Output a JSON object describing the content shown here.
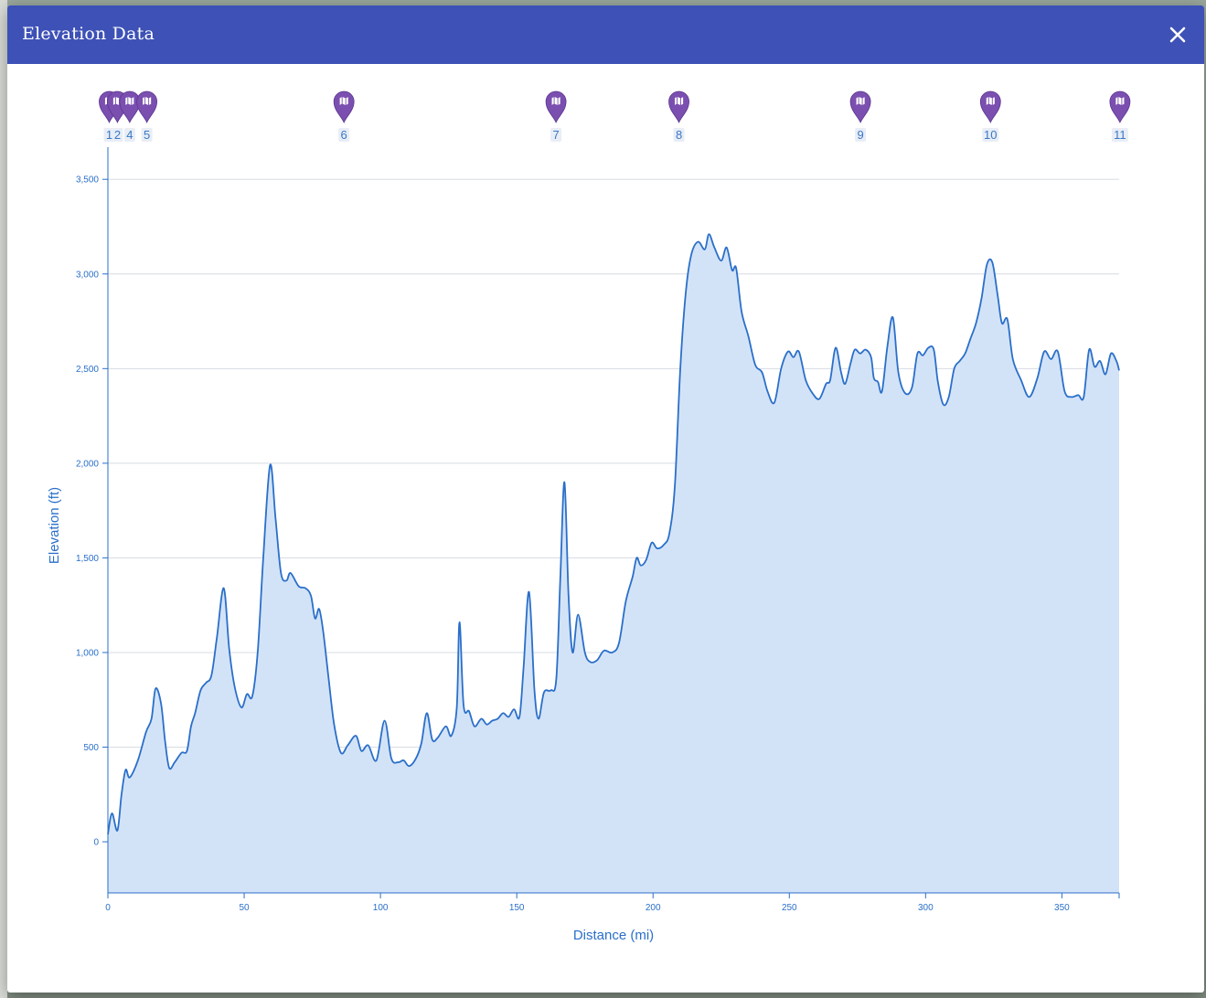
{
  "dialog": {
    "title": "Elevation Data",
    "close_icon": "close-icon"
  },
  "colors": {
    "header": "#3d51b6",
    "line": "#2a6fc9",
    "fill": "#d3e3f7",
    "axis": "#2a6fc9",
    "marker": "#7b4fb0",
    "marker_label_bg": "#e8edf6"
  },
  "markers": [
    {
      "label": "1",
      "x": 0.5,
      "icon": "map-marker-icon"
    },
    {
      "label": "2",
      "x": 3.5,
      "icon": "map-marker-icon"
    },
    {
      "label": "4",
      "x": 8,
      "icon": "map-marker-icon"
    },
    {
      "label": "5",
      "x": 14.3,
      "icon": "map-marker-icon"
    },
    {
      "label": "6",
      "x": 86.6,
      "icon": "map-marker-icon"
    },
    {
      "label": "7",
      "x": 164.4,
      "icon": "map-marker-icon"
    },
    {
      "label": "8",
      "x": 209.5,
      "icon": "map-marker-icon"
    },
    {
      "label": "9",
      "x": 276.1,
      "icon": "map-marker-icon"
    },
    {
      "label": "10",
      "x": 323.8,
      "icon": "map-marker-icon"
    },
    {
      "label": "11",
      "x": 371.3,
      "icon": "map-marker-icon"
    }
  ],
  "chart_data": {
    "type": "area",
    "xlabel": "Distance (mi)",
    "ylabel": "Elevation (ft)",
    "xlim": [
      0,
      371
    ],
    "ylim": [
      -270,
      3670
    ],
    "grid": true,
    "x_ticks": [
      0,
      50,
      100,
      150,
      200,
      250,
      300,
      350
    ],
    "x_tick_labels": [
      "0",
      "50",
      "100",
      "150",
      "200",
      "250",
      "300",
      "350"
    ],
    "y_ticks": [
      0,
      500,
      1000,
      1500,
      2000,
      2500,
      3000,
      3500
    ],
    "y_tick_labels": [
      "0",
      "500",
      "1,000",
      "1,500",
      "2,000",
      "2,500",
      "3,000",
      "3,500"
    ],
    "series": [
      {
        "values": [
          [
            0,
            40
          ],
          [
            1.5,
            150
          ],
          [
            3.5,
            60
          ],
          [
            5,
            250
          ],
          [
            6.5,
            380
          ],
          [
            8,
            340
          ],
          [
            11,
            430
          ],
          [
            14,
            580
          ],
          [
            16,
            650
          ],
          [
            17.5,
            810
          ],
          [
            19.5,
            730
          ],
          [
            21,
            530
          ],
          [
            22.5,
            390
          ],
          [
            24.5,
            420
          ],
          [
            27,
            470
          ],
          [
            29,
            480
          ],
          [
            30.5,
            610
          ],
          [
            32,
            680
          ],
          [
            34,
            800
          ],
          [
            36,
            840
          ],
          [
            38,
            880
          ],
          [
            40,
            1080
          ],
          [
            42.5,
            1340
          ],
          [
            44.5,
            1020
          ],
          [
            46.5,
            820
          ],
          [
            49,
            710
          ],
          [
            51,
            780
          ],
          [
            53,
            770
          ],
          [
            55,
            1010
          ],
          [
            57,
            1500
          ],
          [
            59.5,
            1990
          ],
          [
            61.5,
            1710
          ],
          [
            63.5,
            1420
          ],
          [
            65.5,
            1380
          ],
          [
            67,
            1420
          ],
          [
            70,
            1350
          ],
          [
            72.5,
            1340
          ],
          [
            74.5,
            1300
          ],
          [
            76,
            1180
          ],
          [
            77.5,
            1230
          ],
          [
            79,
            1110
          ],
          [
            81,
            860
          ],
          [
            83,
            620
          ],
          [
            85.5,
            470
          ],
          [
            88,
            510
          ],
          [
            91,
            560
          ],
          [
            93,
            480
          ],
          [
            95.5,
            510
          ],
          [
            98.5,
            430
          ],
          [
            101.5,
            640
          ],
          [
            104,
            440
          ],
          [
            106.5,
            420
          ],
          [
            108.5,
            430
          ],
          [
            110.5,
            400
          ],
          [
            113,
            440
          ],
          [
            115,
            520
          ],
          [
            117,
            680
          ],
          [
            119,
            540
          ],
          [
            121,
            550
          ],
          [
            124,
            610
          ],
          [
            126,
            560
          ],
          [
            128,
            710
          ],
          [
            129,
            1160
          ],
          [
            130.5,
            720
          ],
          [
            132.5,
            690
          ],
          [
            134.5,
            610
          ],
          [
            137,
            650
          ],
          [
            139,
            620
          ],
          [
            141,
            640
          ],
          [
            143,
            650
          ],
          [
            145,
            680
          ],
          [
            147,
            660
          ],
          [
            149,
            700
          ],
          [
            151,
            660
          ],
          [
            152.5,
            920
          ],
          [
            154.5,
            1320
          ],
          [
            156.5,
            800
          ],
          [
            158,
            650
          ],
          [
            160,
            790
          ],
          [
            162.5,
            800
          ],
          [
            164.5,
            860
          ],
          [
            166,
            1400
          ],
          [
            167.5,
            1900
          ],
          [
            169,
            1300
          ],
          [
            170.5,
            1000
          ],
          [
            172.5,
            1200
          ],
          [
            175,
            1000
          ],
          [
            177,
            950
          ],
          [
            179.5,
            960
          ],
          [
            182,
            1010
          ],
          [
            185,
            1000
          ],
          [
            187.5,
            1050
          ],
          [
            190,
            1270
          ],
          [
            192.5,
            1400
          ],
          [
            194,
            1500
          ],
          [
            195.5,
            1460
          ],
          [
            197.5,
            1490
          ],
          [
            199.5,
            1580
          ],
          [
            201.5,
            1550
          ],
          [
            204,
            1570
          ],
          [
            206,
            1630
          ],
          [
            208,
            1880
          ],
          [
            210,
            2500
          ],
          [
            212,
            2900
          ],
          [
            214,
            3100
          ],
          [
            216.5,
            3170
          ],
          [
            219,
            3130
          ],
          [
            220.5,
            3210
          ],
          [
            222.5,
            3140
          ],
          [
            225,
            3070
          ],
          [
            227,
            3140
          ],
          [
            229,
            3020
          ],
          [
            230.5,
            3030
          ],
          [
            232.5,
            2800
          ],
          [
            235,
            2670
          ],
          [
            237.5,
            2520
          ],
          [
            240,
            2480
          ],
          [
            242,
            2380
          ],
          [
            244.5,
            2320
          ],
          [
            247,
            2500
          ],
          [
            249.5,
            2590
          ],
          [
            251.5,
            2560
          ],
          [
            253.5,
            2590
          ],
          [
            256,
            2440
          ],
          [
            258.5,
            2370
          ],
          [
            261,
            2340
          ],
          [
            263.5,
            2420
          ],
          [
            265,
            2440
          ],
          [
            267,
            2610
          ],
          [
            269,
            2480
          ],
          [
            270.5,
            2420
          ],
          [
            272.5,
            2530
          ],
          [
            274,
            2600
          ],
          [
            276,
            2580
          ],
          [
            278,
            2600
          ],
          [
            280,
            2560
          ],
          [
            281,
            2450
          ],
          [
            282.5,
            2430
          ],
          [
            284,
            2380
          ],
          [
            286,
            2620
          ],
          [
            288,
            2770
          ],
          [
            290,
            2480
          ],
          [
            292.5,
            2370
          ],
          [
            295,
            2400
          ],
          [
            297,
            2580
          ],
          [
            299,
            2570
          ],
          [
            301,
            2610
          ],
          [
            303,
            2600
          ],
          [
            304.5,
            2430
          ],
          [
            306.5,
            2310
          ],
          [
            308.5,
            2350
          ],
          [
            310.5,
            2500
          ],
          [
            312.5,
            2540
          ],
          [
            314.5,
            2580
          ],
          [
            316.5,
            2660
          ],
          [
            318.5,
            2740
          ],
          [
            320.5,
            2870
          ],
          [
            322.5,
            3050
          ],
          [
            324.5,
            3060
          ],
          [
            326.5,
            2880
          ],
          [
            328,
            2740
          ],
          [
            330,
            2760
          ],
          [
            332,
            2550
          ],
          [
            335,
            2440
          ],
          [
            338,
            2350
          ],
          [
            341,
            2450
          ],
          [
            343.5,
            2590
          ],
          [
            346,
            2550
          ],
          [
            348.5,
            2590
          ],
          [
            351,
            2380
          ],
          [
            353.5,
            2350
          ],
          [
            356,
            2360
          ],
          [
            358,
            2350
          ],
          [
            360,
            2600
          ],
          [
            362,
            2510
          ],
          [
            364,
            2540
          ],
          [
            366,
            2470
          ],
          [
            368,
            2580
          ],
          [
            370,
            2540
          ],
          [
            371,
            2490
          ]
        ]
      }
    ]
  }
}
